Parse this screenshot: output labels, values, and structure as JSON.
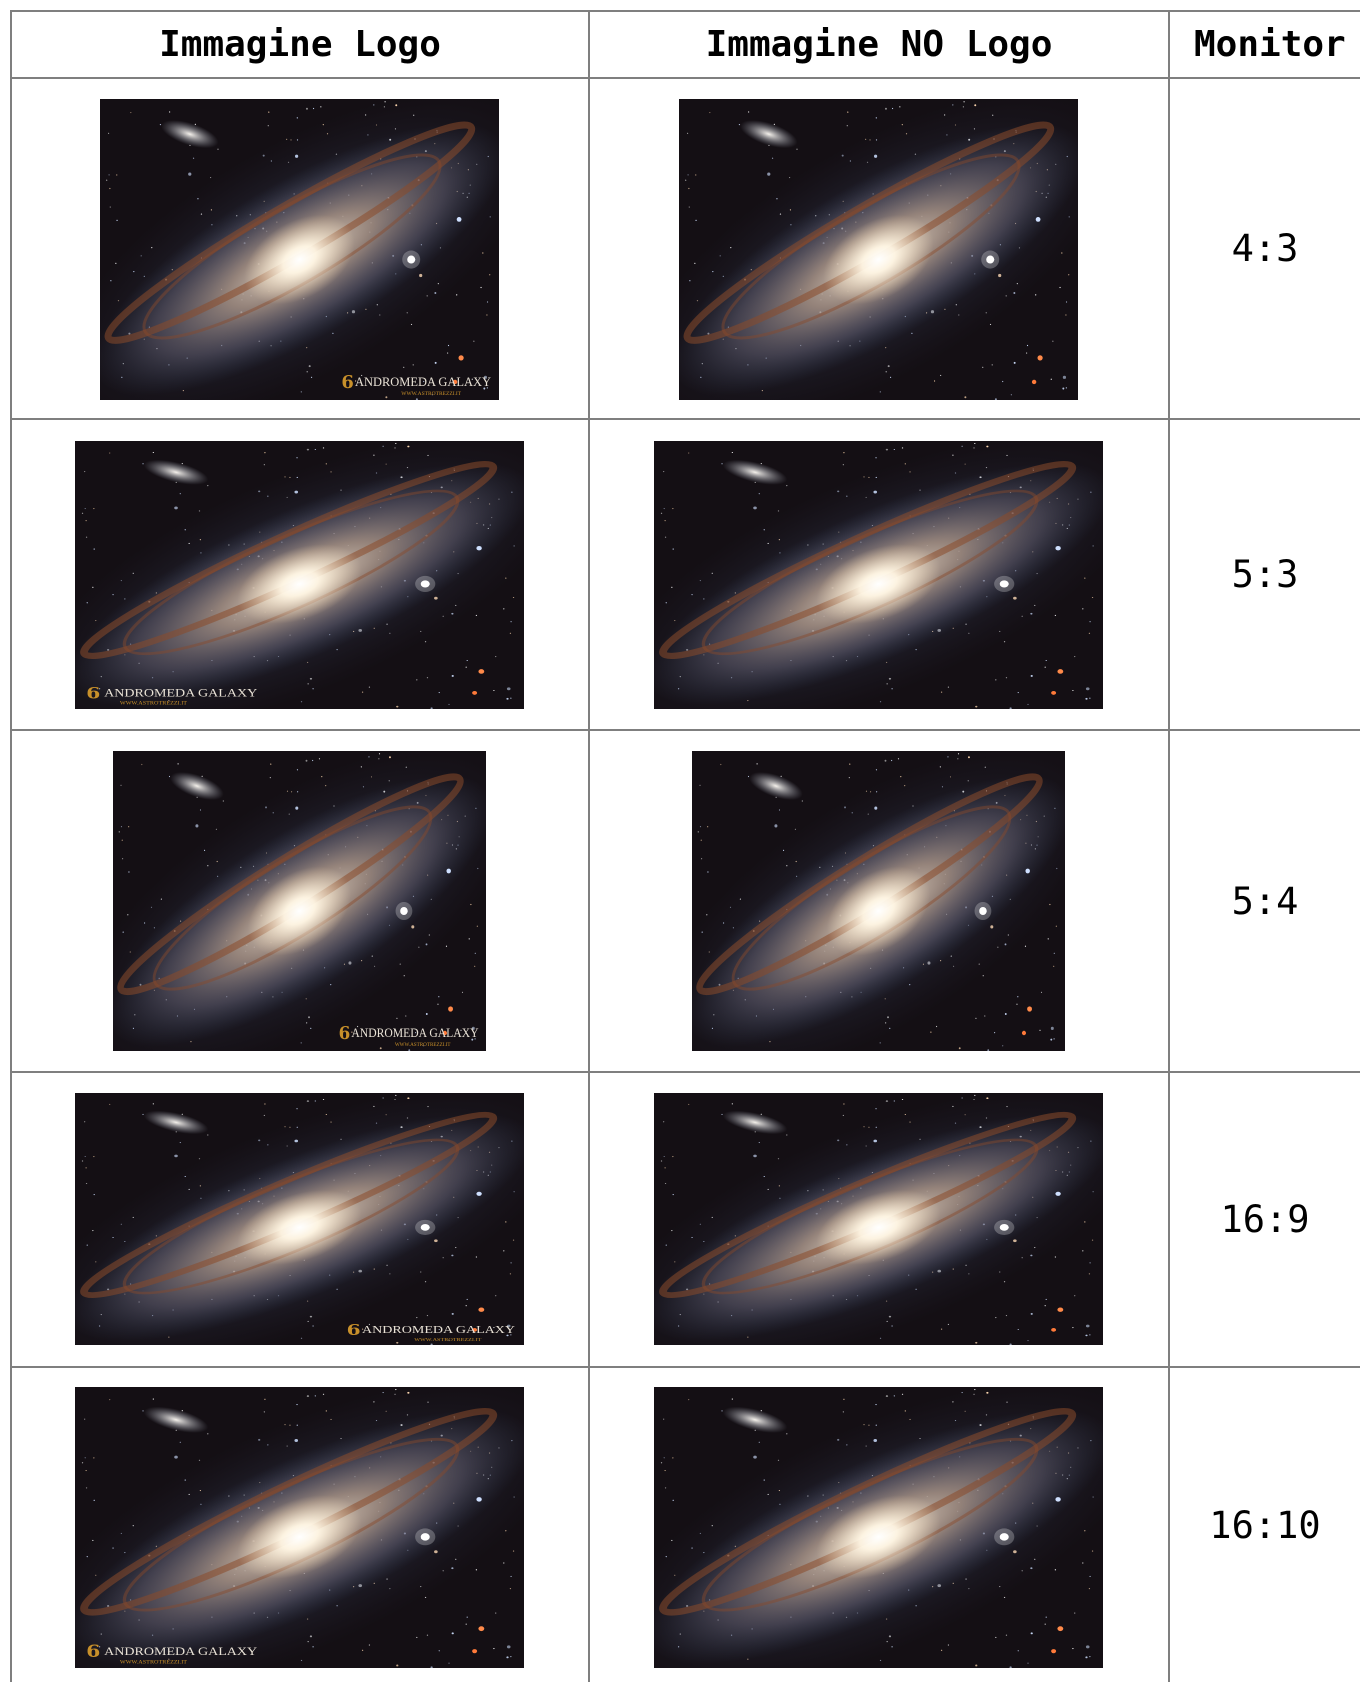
{
  "table": {
    "headers": [
      "Immagine Logo",
      "Immagine NO Logo",
      "Monitor"
    ],
    "rows": [
      {
        "ratio": "4:3",
        "logo_text": "ANDROMEDA GALAXY",
        "logo_url": "WWW.ASTROTREZZI.IT",
        "logo_position": "bottom-right"
      },
      {
        "ratio": "5:3",
        "logo_text": "ANDROMEDA GALAXY",
        "logo_url": "WWW.ASTROTREZZI.IT",
        "logo_position": "bottom-left"
      },
      {
        "ratio": "5:4",
        "logo_text": "ANDROMEDA GALAXY",
        "logo_url": "WWW.ASTROTREZZI.IT",
        "logo_position": "bottom-right"
      },
      {
        "ratio": "16:9",
        "logo_text": "ANDROMEDA GALAXY",
        "logo_url": "WWW.ASTROTREZZI.IT",
        "logo_position": "bottom-right"
      },
      {
        "ratio": "16:10",
        "logo_text": "ANDROMEDA GALAXY",
        "logo_url": "WWW.ASTROTREZZI.IT",
        "logo_position": "bottom-left"
      }
    ]
  },
  "image_subject": "andromeda-galaxy",
  "colors": {
    "grid_line": "#7f7f7f",
    "sky": "#140f14",
    "dust_lane": "#8a4a2a",
    "core": "#fff6e4",
    "logo_gold": "#c8902a"
  }
}
